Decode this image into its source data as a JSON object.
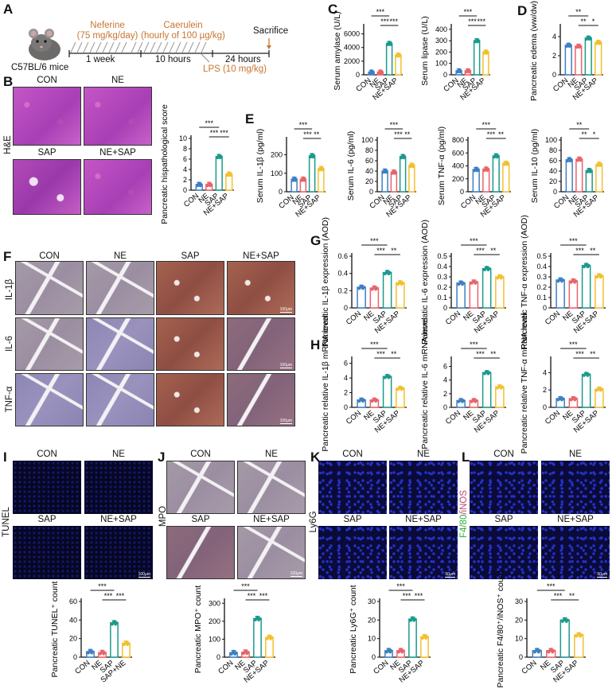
{
  "panel_labels": [
    "A",
    "B",
    "C",
    "D",
    "E",
    "F",
    "G",
    "H",
    "I",
    "J",
    "K",
    "L"
  ],
  "group_colors": {
    "CON": "#3d7fc2",
    "NE": "#e8646a",
    "SAP": "#1a9a8c",
    "NE+SAP": "#f2c02e"
  },
  "timeline": {
    "strain": "C57BL/6 mice",
    "neferine": "Neferine",
    "neferine_dose": "(75 mg/kg/day)",
    "caerulein": "Caerulein",
    "caerulein_dose": "(hourly of 100 µg/kg)",
    "sacrifice": "Sacrifice",
    "period1": "1 week",
    "period2": "10 hours",
    "period3": "24 hours",
    "lps": "LPS (10 mg/kg)"
  },
  "groups": [
    "CON",
    "NE",
    "SAP",
    "NE+SAP"
  ],
  "panel_B": {
    "row_label": "H&E",
    "titles": [
      "CON",
      "NE",
      "SAP",
      "NE+SAP"
    ]
  },
  "panel_F": {
    "titles": [
      "CON",
      "NE",
      "SAP",
      "NE+SAP"
    ],
    "rows": [
      "IL-1β",
      "IL-6",
      "TNF-α"
    ],
    "scale": "100µm"
  },
  "panel_I": {
    "row_label": "TUNEL",
    "titles": [
      "CON",
      "NE",
      "SAP",
      "NE+SAP"
    ],
    "scale": "100µm"
  },
  "panel_J": {
    "row_label": "MPO",
    "titles": [
      "CON",
      "NE",
      "SAP",
      "NE+SAP"
    ],
    "scale": "100µm"
  },
  "panel_K": {
    "row_label": "Ly6G",
    "titles": [
      "CON",
      "NE",
      "SAP",
      "NE+SAP"
    ],
    "scale": "50µm"
  },
  "panel_L": {
    "row_label_green": "F4/80",
    "row_label_sep": "/",
    "row_label_red": "iNOS",
    "titles": [
      "CON",
      "NE",
      "SAP",
      "NE+SAP"
    ],
    "scale": "50µm"
  },
  "chart_data": [
    {
      "id": "C1",
      "type": "bar",
      "ylabel": "Serum amylase (U/L)",
      "categories": [
        "CON",
        "NE",
        "SAP",
        "NE+SAP"
      ],
      "values": [
        400,
        400,
        4600,
        2900
      ],
      "ylim": [
        0,
        7000
      ],
      "yticks": [
        0,
        2000,
        4000,
        6000
      ],
      "sig": [
        {
          "from": 0,
          "to": 2,
          "label": "***"
        },
        {
          "from": 1,
          "to": 2,
          "label": "***"
        },
        {
          "from": 2,
          "to": 3,
          "label": "***"
        }
      ]
    },
    {
      "id": "C2",
      "type": "bar",
      "ylabel": "Serum lipase (U/L)",
      "categories": [
        "CON",
        "NE",
        "SAP",
        "NE+SAP"
      ],
      "values": [
        35,
        35,
        300,
        200
      ],
      "ylim": [
        0,
        420
      ],
      "yticks": [
        0,
        100,
        200,
        300,
        400
      ],
      "sig": [
        {
          "from": 0,
          "to": 2,
          "label": "***"
        },
        {
          "from": 1,
          "to": 2,
          "label": "***"
        },
        {
          "from": 2,
          "to": 3,
          "label": "***"
        }
      ]
    },
    {
      "id": "D",
      "type": "bar",
      "ylabel": "Pancreatic edema (ww/dw)",
      "categories": [
        "CON",
        "NE",
        "SAP",
        "NE+SAP"
      ],
      "values": [
        3.1,
        3.0,
        3.85,
        3.4
      ],
      "ylim": [
        0,
        5
      ],
      "yticks": [
        0,
        2,
        4
      ],
      "sig": [
        {
          "from": 0,
          "to": 2,
          "label": "**"
        },
        {
          "from": 1,
          "to": 2,
          "label": "**"
        },
        {
          "from": 2,
          "to": 3,
          "label": "*"
        }
      ]
    },
    {
      "id": "B",
      "type": "bar",
      "ylabel": "Pancreatic hispathological score",
      "categories": [
        "CON",
        "NE",
        "SAP",
        "NE+SAP"
      ],
      "values": [
        1.1,
        1.1,
        6.5,
        3.1
      ],
      "ylim": [
        0,
        10
      ],
      "yticks": [
        0,
        2,
        4,
        6,
        8,
        10
      ],
      "sig": [
        {
          "from": 0,
          "to": 2,
          "label": "***"
        },
        {
          "from": 1,
          "to": 2,
          "label": "***"
        },
        {
          "from": 2,
          "to": 3,
          "label": "***"
        }
      ]
    },
    {
      "id": "E1",
      "type": "bar",
      "ylabel": "Serum IL-1β (pg/ml)",
      "categories": [
        "CON",
        "NE",
        "SAP",
        "NE+SAP"
      ],
      "values": [
        68,
        68,
        195,
        125
      ],
      "ylim": [
        0,
        280
      ],
      "yticks": [
        0,
        100,
        200
      ],
      "sig": [
        {
          "from": 0,
          "to": 2,
          "label": "***"
        },
        {
          "from": 1,
          "to": 2,
          "label": "***"
        },
        {
          "from": 2,
          "to": 3,
          "label": "**"
        }
      ]
    },
    {
      "id": "E2",
      "type": "bar",
      "ylabel": "Serum IL-6 (pg/ml)",
      "categories": [
        "CON",
        "NE",
        "SAP",
        "NE+SAP"
      ],
      "values": [
        40,
        38,
        68,
        51
      ],
      "ylim": [
        0,
        100
      ],
      "yticks": [
        0,
        20,
        40,
        60,
        80,
        100
      ],
      "sig": [
        {
          "from": 0,
          "to": 2,
          "label": "***"
        },
        {
          "from": 1,
          "to": 2,
          "label": "***"
        },
        {
          "from": 2,
          "to": 3,
          "label": "**"
        }
      ]
    },
    {
      "id": "E3",
      "type": "bar",
      "ylabel": "Serum TNF-α (pg/ml)",
      "categories": [
        "CON",
        "NE",
        "SAP",
        "NE+SAP"
      ],
      "values": [
        345,
        350,
        555,
        440
      ],
      "ylim": [
        0,
        800
      ],
      "yticks": [
        0,
        200,
        400,
        600,
        800
      ],
      "sig": [
        {
          "from": 0,
          "to": 2,
          "label": "***"
        },
        {
          "from": 1,
          "to": 2,
          "label": "***"
        },
        {
          "from": 2,
          "to": 3,
          "label": "**"
        }
      ]
    },
    {
      "id": "E4",
      "type": "bar",
      "ylabel": "Serum IL-10 (pg/ml)",
      "categories": [
        "CON",
        "NE",
        "SAP",
        "NE+SAP"
      ],
      "values": [
        62,
        63,
        41,
        53
      ],
      "ylim": [
        0,
        100
      ],
      "yticks": [
        0,
        20,
        40,
        60,
        80,
        100
      ],
      "sig": [
        {
          "from": 0,
          "to": 2,
          "label": "**"
        },
        {
          "from": 1,
          "to": 2,
          "label": "**"
        },
        {
          "from": 2,
          "to": 3,
          "label": "*"
        }
      ]
    },
    {
      "id": "G1",
      "type": "bar",
      "ylabel": "Pancreatic IL-1β expression (AOD)",
      "categories": [
        "CON",
        "NE",
        "SAP",
        "NE+SAP"
      ],
      "values": [
        0.24,
        0.23,
        0.41,
        0.29
      ],
      "ylim": [
        0,
        0.6
      ],
      "yticks": [
        0.0,
        0.2,
        0.4,
        0.6
      ],
      "sig": [
        {
          "from": 0,
          "to": 2,
          "label": "***"
        },
        {
          "from": 1,
          "to": 2,
          "label": "***"
        },
        {
          "from": 2,
          "to": 3,
          "label": "**"
        }
      ]
    },
    {
      "id": "G2",
      "type": "bar",
      "ylabel": "Pancreatic IL-6 expression (AOD)",
      "categories": [
        "CON",
        "NE",
        "SAP",
        "NE+SAP"
      ],
      "values": [
        0.24,
        0.25,
        0.38,
        0.3
      ],
      "ylim": [
        0,
        0.5
      ],
      "yticks": [
        0.0,
        0.1,
        0.2,
        0.3,
        0.4,
        0.5
      ],
      "sig": [
        {
          "from": 0,
          "to": 2,
          "label": "***"
        },
        {
          "from": 1,
          "to": 2,
          "label": "***"
        },
        {
          "from": 2,
          "to": 3,
          "label": "**"
        }
      ]
    },
    {
      "id": "G3",
      "type": "bar",
      "ylabel": "Pancreatic TNF-α expression (AOD)",
      "categories": [
        "CON",
        "NE",
        "SAP",
        "NE+SAP"
      ],
      "values": [
        0.27,
        0.26,
        0.41,
        0.31
      ],
      "ylim": [
        0,
        0.5
      ],
      "yticks": [
        0.0,
        0.1,
        0.2,
        0.3,
        0.4,
        0.5
      ],
      "sig": [
        {
          "from": 0,
          "to": 2,
          "label": "***"
        },
        {
          "from": 1,
          "to": 2,
          "label": "***"
        },
        {
          "from": 2,
          "to": 3,
          "label": "**"
        }
      ]
    },
    {
      "id": "H1",
      "type": "bar",
      "ylabel": "Pancreatic relative IL-1β mRNA level",
      "categories": [
        "CON",
        "NE",
        "SAP",
        "NE+SAP"
      ],
      "values": [
        1.0,
        1.0,
        4.2,
        2.6
      ],
      "ylim": [
        0,
        6.5
      ],
      "yticks": [
        0,
        2,
        4,
        6
      ],
      "sig": [
        {
          "from": 0,
          "to": 2,
          "label": "***"
        },
        {
          "from": 1,
          "to": 2,
          "label": "***"
        },
        {
          "from": 2,
          "to": 3,
          "label": "**"
        }
      ]
    },
    {
      "id": "H2",
      "type": "bar",
      "ylabel": "Pancreatic relative IL-6 mRNA level",
      "categories": [
        "CON",
        "NE",
        "SAP",
        "NE+SAP"
      ],
      "values": [
        1.0,
        1.0,
        5.1,
        3.0
      ],
      "ylim": [
        0,
        7
      ],
      "yticks": [
        0,
        2,
        4,
        6
      ],
      "sig": [
        {
          "from": 0,
          "to": 2,
          "label": "***"
        },
        {
          "from": 1,
          "to": 2,
          "label": "***"
        },
        {
          "from": 2,
          "to": 3,
          "label": "**"
        }
      ]
    },
    {
      "id": "H3",
      "type": "bar",
      "ylabel": "Pancreatic relative TNF-α mRNA level",
      "categories": [
        "CON",
        "NE",
        "SAP",
        "NE+SAP"
      ],
      "values": [
        1.0,
        1.0,
        3.8,
        2.1
      ],
      "ylim": [
        0,
        5.5
      ],
      "yticks": [
        0,
        2,
        4
      ],
      "sig": [
        {
          "from": 0,
          "to": 2,
          "label": "***"
        },
        {
          "from": 1,
          "to": 2,
          "label": "***"
        },
        {
          "from": 2,
          "to": 3,
          "label": "**"
        }
      ]
    },
    {
      "id": "I",
      "type": "bar",
      "ylabel": "Pancreatic TUNEL⁺ count",
      "categories": [
        "CON",
        "NE",
        "SAP",
        "SAP+NE"
      ],
      "values": [
        6,
        5,
        37,
        15
      ],
      "ylim": [
        0,
        60
      ],
      "yticks": [
        0,
        20,
        40,
        60
      ],
      "sig": [
        {
          "from": 0,
          "to": 2,
          "label": "***"
        },
        {
          "from": 1,
          "to": 2,
          "label": "***"
        },
        {
          "from": 2,
          "to": 3,
          "label": "***"
        }
      ]
    },
    {
      "id": "J",
      "type": "bar",
      "ylabel": "Pancreatic MPO⁺ count",
      "categories": [
        "CON",
        "NE",
        "SAP",
        "NE+SAP"
      ],
      "values": [
        25,
        28,
        215,
        110
      ],
      "ylim": [
        0,
        310
      ],
      "yticks": [
        0,
        100,
        200,
        300
      ],
      "sig": [
        {
          "from": 0,
          "to": 2,
          "label": "***"
        },
        {
          "from": 1,
          "to": 2,
          "label": "***"
        },
        {
          "from": 2,
          "to": 3,
          "label": "***"
        }
      ]
    },
    {
      "id": "K",
      "type": "bar",
      "ylabel": "Pancreatic Ly6G⁺ count",
      "categories": [
        "CON",
        "NE",
        "SAP",
        "NE+SAP"
      ],
      "values": [
        3.5,
        3.5,
        20.5,
        11
      ],
      "ylim": [
        0,
        30
      ],
      "yticks": [
        0,
        10,
        20,
        30
      ],
      "sig": [
        {
          "from": 0,
          "to": 2,
          "label": "***"
        },
        {
          "from": 1,
          "to": 2,
          "label": "***"
        },
        {
          "from": 2,
          "to": 3,
          "label": "***"
        }
      ]
    },
    {
      "id": "L",
      "type": "bar",
      "ylabel": "Pancreatic F4/80⁺/iNOS⁺ count",
      "categories": [
        "CON",
        "NE",
        "SAP",
        "NE+SAP"
      ],
      "values": [
        3.5,
        3.5,
        20,
        12
      ],
      "ylim": [
        0,
        30
      ],
      "yticks": [
        0,
        10,
        20,
        30
      ],
      "sig": [
        {
          "from": 0,
          "to": 2,
          "label": "***"
        },
        {
          "from": 1,
          "to": 2,
          "label": "***"
        },
        {
          "from": 2,
          "to": 3,
          "label": "**"
        }
      ]
    }
  ]
}
